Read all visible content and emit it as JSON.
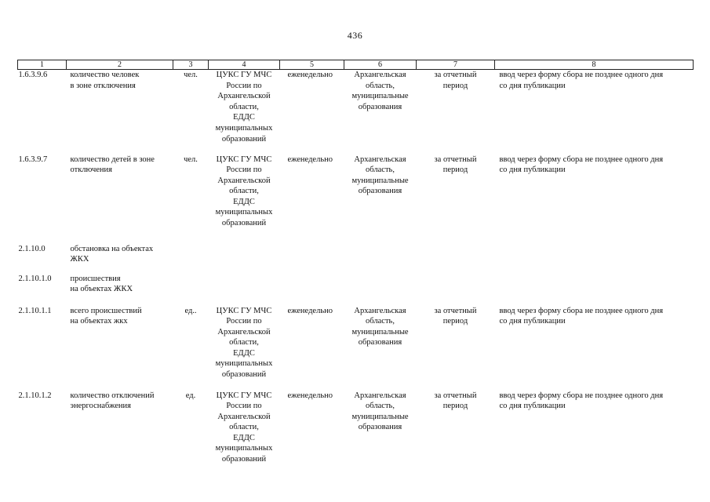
{
  "page_number": "436",
  "columns": [
    "1",
    "2",
    "3",
    "4",
    "5",
    "6",
    "7",
    "8"
  ],
  "rows": [
    {
      "num": "1.6.3.9.6",
      "name": "количество человек\nв зоне отключения",
      "unit": "чел.",
      "source": "ЦУКС ГУ МЧС\nРоссии по\nАрхангельской\nобласти,\nЕДДС\nмуниципальных\nобразований",
      "frequency": "еженедельно",
      "territory": "Архангельская\nобласть,\nмуниципальные\nобразования",
      "period": "за отчетный\nпериод",
      "method": "ввод через форму сбора не  позднее одного дня\nсо дня публикации"
    },
    {
      "num": "1.6.3.9.7",
      "name": "количество детей в зоне\nотключения",
      "unit": "чел.",
      "source": "ЦУКС ГУ МЧС\nРоссии по\nАрхангельской\nобласти,\nЕДДС\nмуниципальных\nобразований",
      "frequency": "еженедельно",
      "territory": "Архангельская\nобласть,\nмуниципальные\nобразования",
      "period": "за отчетный\nпериод",
      "method": "ввод через форму сбора не позднее одного дня\nсо дня публикации"
    },
    {
      "num": "2.1.10.0",
      "name": "обстановка на объектах\nЖКХ",
      "unit": "",
      "source": "",
      "frequency": "",
      "territory": "",
      "period": "",
      "method": ""
    },
    {
      "num": "2.1.10.1.0",
      "name": "происшествия\nна объектах ЖКХ",
      "unit": "",
      "source": "",
      "frequency": "",
      "territory": "",
      "period": "",
      "method": ""
    },
    {
      "num": "2.1.10.1.1",
      "name": "всего происшествий\nна объектах жкх",
      "unit": "ед..",
      "source": "ЦУКС ГУ МЧС\nРоссии по\nАрхангельской\nобласти,\nЕДДС\nмуниципальных\nобразований",
      "frequency": "еженедельно",
      "territory": "Архангельская\nобласть,\nмуниципальные\nобразования",
      "period": "за отчетный\nпериод",
      "method": "ввод через форму сбора не позднее одного дня\nсо дня публикации"
    },
    {
      "num": "2.1.10.1.2",
      "name": "количество отключений\nэнергоснабжения",
      "unit": "ед.",
      "source": "ЦУКС ГУ МЧС\nРоссии по\nАрхангельской\nобласти,\nЕДДС\nмуниципальных\nобразований",
      "frequency": "еженедельно",
      "territory": "Архангельская\nобласть,\nмуниципальные\nобразования",
      "period": "за отчетный\nпериод",
      "method": "ввод через форму сбора не позднее одного дня\nсо дня публикации"
    }
  ]
}
